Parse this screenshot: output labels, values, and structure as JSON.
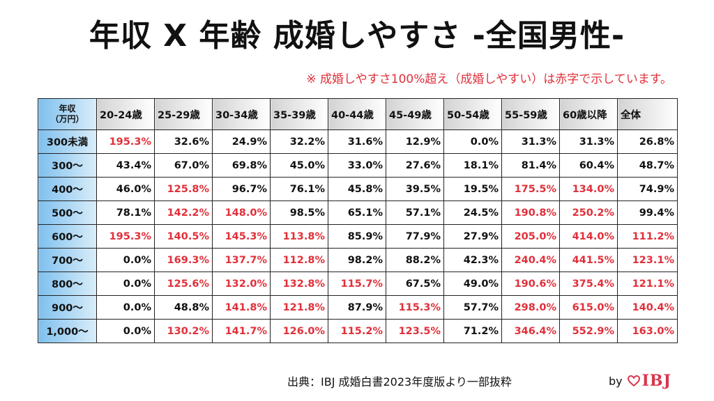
{
  "title": "年収 X 年齢 成婚しやすさ -全国男性-",
  "note": "※ 成婚しやすさ100%超え（成婚しやすい）は赤字で示しています。",
  "source": "出典：IBJ 成婚白書2023年度版より一部抜粋",
  "brand": {
    "by": "by",
    "logo_text": "IBJ",
    "logo_color": "#d9364b"
  },
  "colors": {
    "highlight": "#e0303a",
    "row_header": "#7fc0ee",
    "col_header": "#d3d3d3"
  },
  "chart_data": {
    "type": "table",
    "corner_label_line1": "年収",
    "corner_label_line2": "（万円）",
    "columns": [
      "20-24歳",
      "25-29歳",
      "30-34歳",
      "35-39歳",
      "40-44歳",
      "45-49歳",
      "50-54歳",
      "55-59歳",
      "60歳以降",
      "全体"
    ],
    "rows": [
      {
        "label": "300未満",
        "values": [
          "195.3%",
          "32.6%",
          "24.9%",
          "32.2%",
          "31.6%",
          "12.9%",
          "0.0%",
          "31.3%",
          "31.3%",
          "26.8%"
        ]
      },
      {
        "label": "300〜",
        "values": [
          "43.4%",
          "67.0%",
          "69.8%",
          "45.0%",
          "33.0%",
          "27.6%",
          "18.1%",
          "81.4%",
          "60.4%",
          "48.7%"
        ]
      },
      {
        "label": "400〜",
        "values": [
          "46.0%",
          "125.8%",
          "96.7%",
          "76.1%",
          "45.8%",
          "39.5%",
          "19.5%",
          "175.5%",
          "134.0%",
          "74.9%"
        ]
      },
      {
        "label": "500〜",
        "values": [
          "78.1%",
          "142.2%",
          "148.0%",
          "98.5%",
          "65.1%",
          "57.1%",
          "24.5%",
          "190.8%",
          "250.2%",
          "99.4%"
        ]
      },
      {
        "label": "600〜",
        "values": [
          "195.3%",
          "140.5%",
          "145.3%",
          "113.8%",
          "85.9%",
          "77.9%",
          "27.9%",
          "205.0%",
          "414.0%",
          "111.2%"
        ]
      },
      {
        "label": "700〜",
        "values": [
          "0.0%",
          "169.3%",
          "137.7%",
          "112.8%",
          "98.2%",
          "88.2%",
          "42.3%",
          "240.4%",
          "441.5%",
          "123.1%"
        ]
      },
      {
        "label": "800〜",
        "values": [
          "0.0%",
          "125.6%",
          "132.0%",
          "132.8%",
          "115.7%",
          "67.5%",
          "49.0%",
          "190.6%",
          "375.4%",
          "121.1%"
        ]
      },
      {
        "label": "900〜",
        "values": [
          "0.0%",
          "48.8%",
          "141.8%",
          "121.8%",
          "87.9%",
          "115.3%",
          "57.7%",
          "298.0%",
          "615.0%",
          "140.4%"
        ]
      },
      {
        "label": "1,000〜",
        "values": [
          "0.0%",
          "130.2%",
          "141.7%",
          "126.0%",
          "115.2%",
          "123.5%",
          "71.2%",
          "346.4%",
          "552.9%",
          "163.0%"
        ]
      }
    ]
  }
}
